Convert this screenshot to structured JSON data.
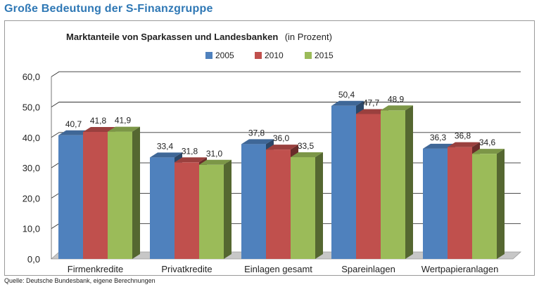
{
  "header": {
    "title": "Große Bedeutung der S-Finanzgruppe"
  },
  "source": "Quelle: Deutsche Bundesbank, eigene Berechnungen",
  "chart_data": {
    "type": "bar",
    "title": "Marktanteile von Sparkassen und Landesbanken",
    "unit": "(in Prozent)",
    "categories": [
      "Firmenkredite",
      "Privatkredite",
      "Einlagen gesamt",
      "Spareinlagen",
      "Wertpapieranlagen"
    ],
    "series": [
      {
        "name": "2005",
        "color": "#4f81bd",
        "values": [
          40.7,
          33.4,
          37.8,
          50.4,
          36.3
        ],
        "labels": [
          "40,7",
          "33,4",
          "37,8",
          "50,4",
          "36,3"
        ]
      },
      {
        "name": "2010",
        "color": "#c0504d",
        "values": [
          41.8,
          31.8,
          36.0,
          47.7,
          36.8
        ],
        "labels": [
          "41,8",
          "31,8",
          "36,0",
          "47,7",
          "36,8"
        ]
      },
      {
        "name": "2015",
        "color": "#9bbb59",
        "values": [
          41.9,
          31.0,
          33.5,
          48.9,
          34.6
        ],
        "labels": [
          "41,9",
          "31,0",
          "33,5",
          "48,9",
          "34,6"
        ]
      }
    ],
    "yticks": [
      "0,0",
      "10,0",
      "20,0",
      "30,0",
      "40,0",
      "50,0",
      "60,0"
    ],
    "ylim": [
      0,
      60
    ],
    "grid": true,
    "legend": "top"
  }
}
